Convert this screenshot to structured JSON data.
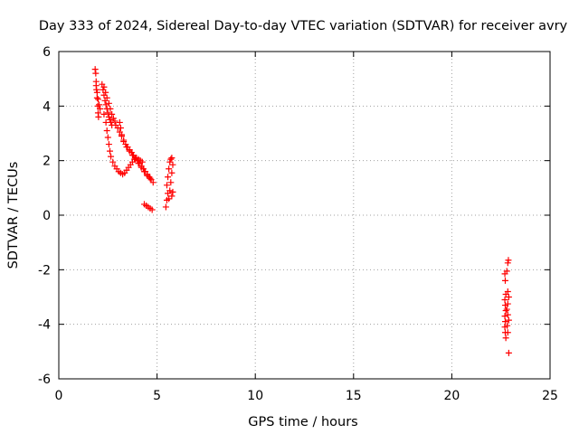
{
  "chart_data": {
    "type": "scatter",
    "title": "Day 333 of 2024, Sidereal Day-to-day VTEC variation (SDTVAR) for receiver avry",
    "xlabel": "GPS time / hours",
    "ylabel": "SDTVAR / TECUs",
    "xlim": [
      0,
      25
    ],
    "ylim": [
      -6,
      6
    ],
    "xticks": [
      0,
      5,
      10,
      15,
      20,
      25
    ],
    "yticks": [
      -6,
      -4,
      -2,
      0,
      2,
      4,
      6
    ],
    "xtick_labels": [
      "0",
      "5",
      "10",
      "15",
      "20",
      "25"
    ],
    "ytick_labels": [
      "-6",
      "-4",
      "-2",
      "0",
      "2",
      "4",
      "6"
    ],
    "grid": true,
    "marker": "+",
    "color": "#ff0000",
    "series": [
      {
        "name": "SDTVAR",
        "points": [
          [
            1.85,
            5.35
          ],
          [
            1.88,
            5.2
          ],
          [
            1.9,
            4.9
          ],
          [
            1.92,
            4.6
          ],
          [
            1.95,
            4.3
          ],
          [
            1.98,
            4.0
          ],
          [
            2.0,
            3.75
          ],
          [
            2.02,
            3.6
          ],
          [
            1.9,
            4.75
          ],
          [
            1.95,
            4.5
          ],
          [
            2.0,
            4.25
          ],
          [
            2.05,
            4.05
          ],
          [
            2.1,
            3.9
          ],
          [
            2.2,
            4.8
          ],
          [
            2.25,
            4.6
          ],
          [
            2.3,
            4.4
          ],
          [
            2.35,
            4.2
          ],
          [
            2.4,
            4.05
          ],
          [
            2.45,
            3.9
          ],
          [
            2.5,
            3.75
          ],
          [
            2.55,
            3.6
          ],
          [
            2.6,
            3.5
          ],
          [
            2.65,
            3.4
          ],
          [
            2.7,
            3.3
          ],
          [
            2.3,
            4.7
          ],
          [
            2.38,
            4.5
          ],
          [
            2.45,
            4.3
          ],
          [
            2.55,
            4.1
          ],
          [
            2.62,
            3.9
          ],
          [
            2.7,
            3.7
          ],
          [
            2.78,
            3.55
          ],
          [
            2.85,
            3.45
          ],
          [
            2.3,
            3.7
          ],
          [
            2.4,
            3.4
          ],
          [
            2.45,
            3.1
          ],
          [
            2.5,
            2.85
          ],
          [
            2.55,
            2.6
          ],
          [
            2.6,
            2.35
          ],
          [
            2.65,
            2.15
          ],
          [
            2.75,
            1.95
          ],
          [
            2.85,
            1.8
          ],
          [
            2.95,
            1.7
          ],
          [
            3.05,
            1.6
          ],
          [
            3.15,
            1.55
          ],
          [
            3.25,
            1.5
          ],
          [
            2.9,
            3.3
          ],
          [
            3.0,
            3.2
          ],
          [
            3.1,
            3.05
          ],
          [
            3.2,
            2.9
          ],
          [
            3.3,
            2.75
          ],
          [
            3.4,
            2.6
          ],
          [
            3.5,
            2.5
          ],
          [
            3.6,
            2.4
          ],
          [
            3.7,
            2.3
          ],
          [
            3.8,
            2.2
          ],
          [
            3.9,
            2.1
          ],
          [
            4.0,
            2.0
          ],
          [
            4.1,
            1.9
          ],
          [
            4.2,
            1.8
          ],
          [
            4.3,
            1.7
          ],
          [
            4.4,
            1.6
          ],
          [
            4.5,
            1.5
          ],
          [
            4.6,
            1.4
          ],
          [
            4.7,
            1.3
          ],
          [
            4.8,
            1.2
          ],
          [
            3.1,
            3.4
          ],
          [
            3.15,
            3.2
          ],
          [
            3.2,
            2.95
          ],
          [
            3.3,
            2.7
          ],
          [
            3.45,
            2.5
          ],
          [
            3.6,
            2.35
          ],
          [
            3.75,
            2.2
          ],
          [
            3.9,
            2.05
          ],
          [
            4.05,
            1.9
          ],
          [
            4.2,
            1.75
          ],
          [
            4.35,
            1.6
          ],
          [
            4.5,
            1.45
          ],
          [
            4.65,
            1.35
          ],
          [
            3.35,
            1.55
          ],
          [
            3.45,
            1.65
          ],
          [
            3.55,
            1.75
          ],
          [
            3.65,
            1.85
          ],
          [
            3.75,
            1.95
          ],
          [
            3.85,
            2.05
          ],
          [
            3.95,
            2.1
          ],
          [
            4.05,
            2.05
          ],
          [
            4.15,
            2.0
          ],
          [
            4.25,
            1.95
          ],
          [
            4.35,
            0.4
          ],
          [
            4.45,
            0.35
          ],
          [
            4.55,
            0.3
          ],
          [
            4.65,
            0.25
          ],
          [
            4.75,
            0.2
          ],
          [
            5.45,
            0.3
          ],
          [
            5.5,
            0.55
          ],
          [
            5.55,
            0.8
          ],
          [
            5.5,
            1.1
          ],
          [
            5.55,
            1.4
          ],
          [
            5.6,
            1.7
          ],
          [
            5.65,
            1.95
          ],
          [
            5.7,
            2.05
          ],
          [
            5.75,
            2.1
          ],
          [
            5.6,
            0.6
          ],
          [
            5.65,
            0.9
          ],
          [
            5.7,
            1.2
          ],
          [
            5.75,
            1.55
          ],
          [
            5.8,
            1.85
          ],
          [
            5.8,
            0.85
          ],
          [
            5.75,
            0.7
          ],
          [
            22.7,
            -2.15
          ],
          [
            22.72,
            -2.4
          ],
          [
            22.75,
            -2.9
          ],
          [
            22.7,
            -3.1
          ],
          [
            22.72,
            -3.3
          ],
          [
            22.75,
            -3.5
          ],
          [
            22.7,
            -3.7
          ],
          [
            22.72,
            -3.9
          ],
          [
            22.7,
            -4.1
          ],
          [
            22.72,
            -4.3
          ],
          [
            22.75,
            -4.5
          ],
          [
            22.8,
            -2.05
          ],
          [
            22.85,
            -1.75
          ],
          [
            22.88,
            -1.65
          ],
          [
            22.85,
            -2.8
          ],
          [
            22.9,
            -3.0
          ],
          [
            22.85,
            -3.25
          ],
          [
            22.8,
            -3.45
          ],
          [
            22.85,
            -3.65
          ],
          [
            22.9,
            -3.85
          ],
          [
            22.82,
            -4.05
          ],
          [
            22.85,
            -4.3
          ],
          [
            22.9,
            -5.05
          ]
        ]
      }
    ]
  }
}
